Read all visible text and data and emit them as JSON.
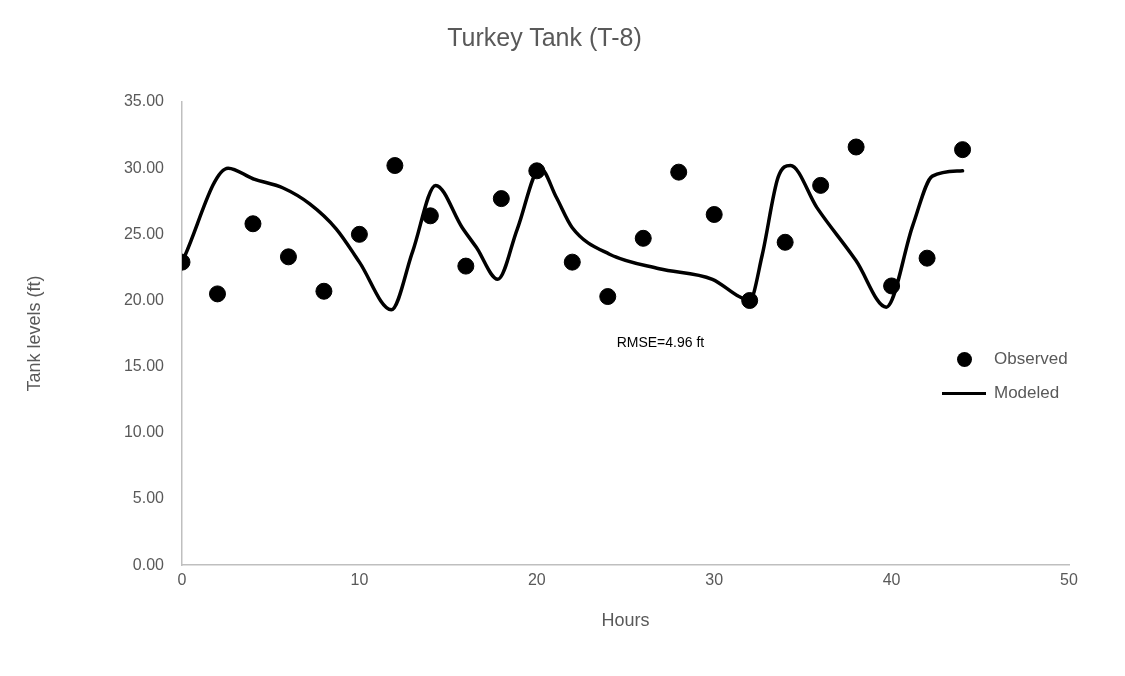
{
  "chart_data": {
    "type": "scatter",
    "title": "Turkey Tank (T-8)",
    "xlabel": "Hours",
    "ylabel": "Tank levels (ft)",
    "xlim": [
      0,
      50
    ],
    "xticks": [
      0,
      10,
      20,
      30,
      40,
      50
    ],
    "ylim": [
      0,
      35
    ],
    "yticks": [
      {
        "value": 0,
        "label": "0.00"
      },
      {
        "value": 5,
        "label": "5.00"
      },
      {
        "value": 10,
        "label": "10.00"
      },
      {
        "value": 15,
        "label": "15.00"
      },
      {
        "value": 20,
        "label": "20.00"
      },
      {
        "value": 25,
        "label": "25.00"
      },
      {
        "value": 30,
        "label": "30.00"
      },
      {
        "value": 35,
        "label": "35.00"
      }
    ],
    "grid": false,
    "legend": "right",
    "marker": "circle",
    "annotations": [
      "RMSE=4.96 ft"
    ],
    "series": [
      {
        "name": "Observed",
        "color": "#000000",
        "x": [
          0,
          2,
          4,
          6,
          8,
          10,
          12,
          14,
          16,
          18,
          20,
          22,
          24,
          26,
          28,
          30,
          32,
          34,
          36,
          38,
          40,
          42,
          44
        ],
        "values": [
          22.9,
          20.5,
          25.8,
          23.3,
          20.7,
          25.0,
          30.2,
          26.4,
          22.6,
          27.7,
          29.8,
          22.9,
          20.3,
          24.7,
          29.7,
          26.5,
          20.0,
          24.4,
          28.7,
          31.6,
          21.1,
          23.2,
          31.4
        ]
      },
      {
        "name": "Modeled",
        "type": "line",
        "color": "#000000",
        "marker": "none",
        "line_style": "solid",
        "x": [
          0,
          2.6,
          4,
          5.7,
          7.2,
          8.7,
          10,
          11.8,
          13,
          14.3,
          15.8,
          16.6,
          17.8,
          18.9,
          20.2,
          21.1,
          22,
          24.1,
          26.9,
          29.9,
          31.4,
          32,
          32.7,
          33.6,
          34.3,
          35.8,
          38,
          39.7,
          41.2,
          42.3,
          44
        ],
        "values": [
          22.9,
          30.0,
          29.2,
          28.5,
          27.3,
          25.4,
          22.9,
          19.3,
          23.7,
          28.7,
          25.5,
          24.0,
          21.6,
          25.4,
          30.0,
          27.8,
          25.5,
          23.5,
          22.4,
          21.6,
          20.3,
          20.0,
          23.4,
          29.3,
          30.2,
          27.0,
          23.0,
          19.5,
          25.7,
          29.4,
          29.8
        ]
      }
    ]
  }
}
